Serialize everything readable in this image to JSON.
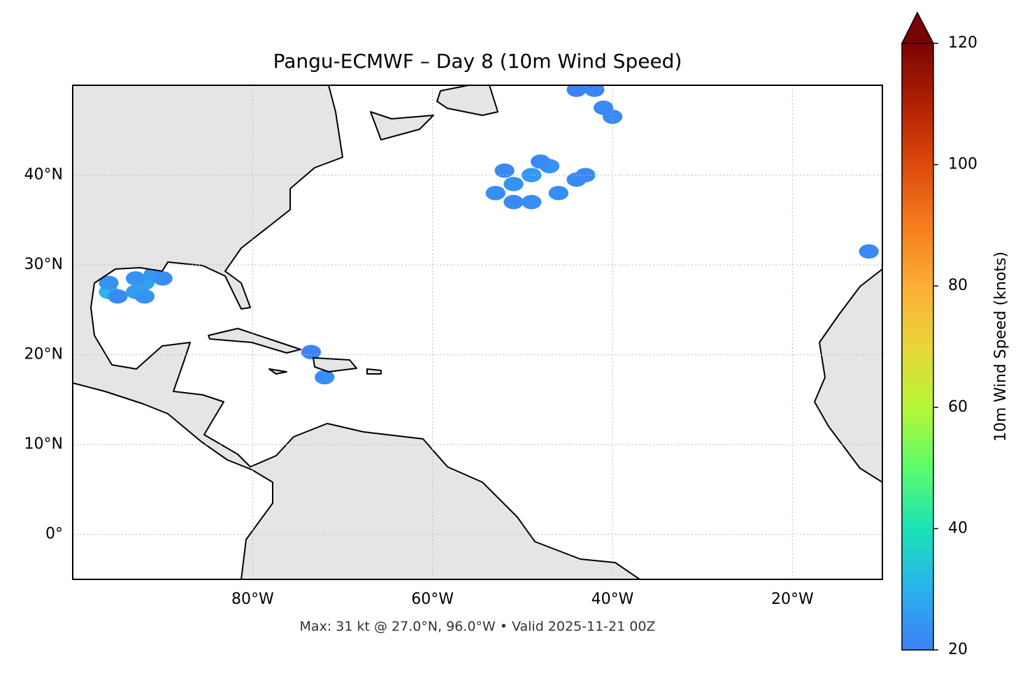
{
  "chart_data": {
    "type": "map",
    "title": "Pangu-ECMWF – Day 8 (10m Wind Speed)",
    "annotation": "Max: 31 kt @ 27.0°N, 96.0°W • Valid 2025-11-21 00Z",
    "xlim": [
      -100,
      -10
    ],
    "ylim": [
      -5,
      50
    ],
    "xticks": [
      {
        "value": -80,
        "label": "80°W"
      },
      {
        "value": -60,
        "label": "60°W"
      },
      {
        "value": -40,
        "label": "40°W"
      },
      {
        "value": -20,
        "label": "20°W"
      }
    ],
    "yticks": [
      {
        "value": 0,
        "label": "0°"
      },
      {
        "value": 10,
        "label": "10°N"
      },
      {
        "value": 20,
        "label": "20°N"
      },
      {
        "value": 30,
        "label": "30°N"
      },
      {
        "value": 40,
        "label": "40°N"
      }
    ],
    "grid": true,
    "colorbar": {
      "label": "10m Wind Speed (knots)",
      "lim": [
        20,
        120
      ],
      "ticks": [
        20,
        40,
        60,
        80,
        100,
        120
      ]
    },
    "points": [
      {
        "lon": -96,
        "lat": 27,
        "speed": 31
      },
      {
        "lon": -96,
        "lat": 28,
        "speed": 24
      },
      {
        "lon": -95,
        "lat": 26.5,
        "speed": 22
      },
      {
        "lon": -93,
        "lat": 27,
        "speed": 26
      },
      {
        "lon": -92,
        "lat": 28,
        "speed": 27
      },
      {
        "lon": -91,
        "lat": 29,
        "speed": 25
      },
      {
        "lon": -93,
        "lat": 28.5,
        "speed": 24
      },
      {
        "lon": -92,
        "lat": 26.5,
        "speed": 24
      },
      {
        "lon": -90,
        "lat": 28.5,
        "speed": 23
      },
      {
        "lon": -53,
        "lat": 38,
        "speed": 23
      },
      {
        "lon": -51,
        "lat": 39,
        "speed": 24
      },
      {
        "lon": -49,
        "lat": 40,
        "speed": 25
      },
      {
        "lon": -47,
        "lat": 41,
        "speed": 24
      },
      {
        "lon": -51,
        "lat": 37,
        "speed": 22
      },
      {
        "lon": -49,
        "lat": 37,
        "speed": 23
      },
      {
        "lon": -46,
        "lat": 38,
        "speed": 23
      },
      {
        "lon": -44,
        "lat": 39.5,
        "speed": 22
      },
      {
        "lon": -43,
        "lat": 40,
        "speed": 22
      },
      {
        "lon": -52,
        "lat": 40.5,
        "speed": 22
      },
      {
        "lon": -48,
        "lat": 41.5,
        "speed": 22
      },
      {
        "lon": -41,
        "lat": 47.5,
        "speed": 22
      },
      {
        "lon": -40,
        "lat": 46.5,
        "speed": 22
      },
      {
        "lon": -42,
        "lat": 49.5,
        "speed": 21
      },
      {
        "lon": -44,
        "lat": 49.5,
        "speed": 21
      },
      {
        "lon": -72,
        "lat": 17.5,
        "speed": 23
      },
      {
        "lon": -73.5,
        "lat": 20.3,
        "speed": 21
      },
      {
        "lon": -11.5,
        "lat": 31.5,
        "speed": 22
      }
    ]
  }
}
